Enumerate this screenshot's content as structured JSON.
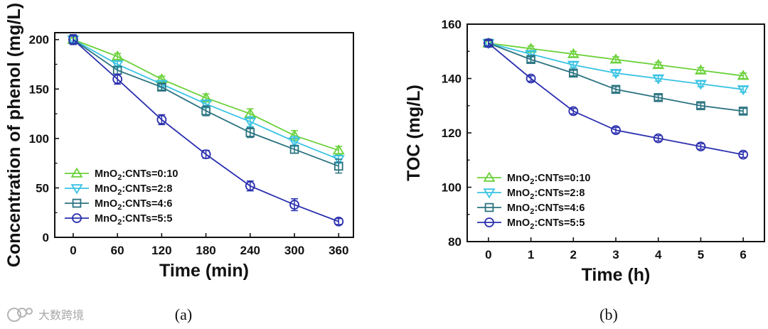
{
  "watermark": "大数跨境",
  "colors": {
    "s1": "#6bd13a",
    "s2": "#39c3e3",
    "s3": "#2a7380",
    "s4": "#2a2fae"
  },
  "chart_data": [
    {
      "type": "line",
      "caption": "(a)",
      "xlabel": "Time (min)",
      "ylabel": "Concentration of phenol (mg/L)",
      "x": [
        0,
        60,
        120,
        180,
        240,
        300,
        360
      ],
      "xticks": [
        "0",
        "60",
        "120",
        "180",
        "240",
        "300",
        "360"
      ],
      "yticks": [
        "0",
        "50",
        "100",
        "150",
        "200"
      ],
      "xlim": [
        -25,
        380
      ],
      "ylim": [
        0,
        207
      ],
      "legend_position": "bottom-left",
      "series": [
        {
          "name": "MnO2:CNTs=0:10",
          "marker": "triangle-up",
          "values": [
            200,
            183,
            160,
            141,
            125,
            103,
            88
          ],
          "errors": [
            4,
            3,
            3,
            4,
            5,
            5,
            4
          ]
        },
        {
          "name": "MnO2:CNTs=2:8",
          "marker": "triangle-down",
          "values": [
            200,
            175,
            155,
            135,
            117,
            97,
            79
          ],
          "errors": [
            4,
            3,
            3,
            4,
            5,
            5,
            4
          ]
        },
        {
          "name": "MnO2:CNTs=4:6",
          "marker": "square",
          "values": [
            200,
            169,
            152,
            128,
            106,
            89,
            72
          ],
          "errors": [
            4,
            4,
            3,
            5,
            5,
            4,
            7
          ]
        },
        {
          "name": "MnO2:CNTs=5:5",
          "marker": "circle",
          "values": [
            200,
            160,
            119,
            84,
            52,
            33,
            16
          ],
          "errors": [
            5,
            5,
            5,
            4,
            5,
            6,
            3
          ]
        }
      ]
    },
    {
      "type": "line",
      "caption": "(b)",
      "xlabel": "Time (h)",
      "ylabel": "TOC (mg/L)",
      "x": [
        0,
        1,
        2,
        3,
        4,
        5,
        6
      ],
      "xticks": [
        "0",
        "1",
        "2",
        "3",
        "4",
        "5",
        "6"
      ],
      "yticks": [
        "80",
        "100",
        "120",
        "140",
        "160"
      ],
      "xlim": [
        -0.5,
        6.5
      ],
      "ylim": [
        80,
        160
      ],
      "legend_position": "bottom-left",
      "series": [
        {
          "name": "MnO2:CNTs=0:10",
          "marker": "triangle-up",
          "values": [
            153,
            151,
            149,
            147,
            145,
            143,
            141
          ],
          "errors": [
            1,
            1,
            1,
            1,
            1,
            1,
            1
          ]
        },
        {
          "name": "MnO2:CNTs=2:8",
          "marker": "triangle-down",
          "values": [
            153,
            149,
            145,
            142,
            140,
            138,
            136
          ],
          "errors": [
            1,
            1,
            1,
            1,
            1,
            1,
            1
          ]
        },
        {
          "name": "MnO2:CNTs=4:6",
          "marker": "square",
          "values": [
            153,
            147,
            142,
            136,
            133,
            130,
            128
          ],
          "errors": [
            1,
            1,
            1,
            1,
            1,
            1,
            1
          ]
        },
        {
          "name": "MnO2:CNTs=5:5",
          "marker": "circle",
          "values": [
            153,
            140,
            128,
            121,
            118,
            115,
            112
          ],
          "errors": [
            1,
            1,
            1,
            1,
            1,
            1,
            1
          ]
        }
      ]
    }
  ]
}
